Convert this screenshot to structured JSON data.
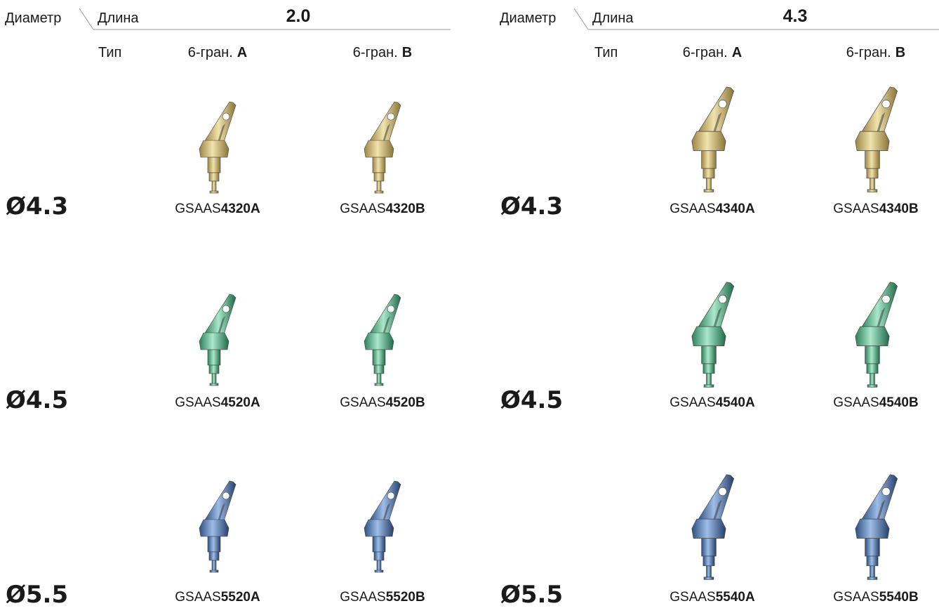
{
  "panels": [
    {
      "diameter_label": "Диаметр",
      "length_label": "Длина",
      "length": "2.0",
      "type_label": "Тип",
      "columns": [
        {
          "text": "6-гран.",
          "letter": "A"
        },
        {
          "text": "6-гран.",
          "letter": "B"
        }
      ],
      "rows": [
        {
          "diameter": "Ø4.3",
          "color": "#f39a1e",
          "codes": [
            {
              "prefix": "GSAAS",
              "number": "4320A"
            },
            {
              "prefix": "GSAAS",
              "number": "4320B"
            }
          ]
        },
        {
          "diameter": "Ø4.5",
          "color": "#3c9a3f",
          "codes": [
            {
              "prefix": "GSAAS",
              "number": "4520A"
            },
            {
              "prefix": "GSAAS",
              "number": "4520B"
            }
          ]
        },
        {
          "diameter": "Ø5.5",
          "color": "#3c9a3f",
          "codes": [
            {
              "prefix": "GSAAS",
              "number": "5520A"
            },
            {
              "prefix": "GSAAS",
              "number": "5520B"
            }
          ]
        }
      ]
    },
    {
      "diameter_label": "Диаметр",
      "length_label": "Длина",
      "length": "4.3",
      "type_label": "Тип",
      "columns": [
        {
          "text": "6-гран.",
          "letter": "A"
        },
        {
          "text": "6-гран.",
          "letter": "B"
        }
      ],
      "rows": [
        {
          "diameter": "Ø4.3",
          "color": "#f39a1e",
          "codes": [
            {
              "prefix": "GSAAS",
              "number": "4340A"
            },
            {
              "prefix": "GSAAS",
              "number": "4340B"
            }
          ]
        },
        {
          "diameter": "Ø4.5",
          "color": "#3c9a3f",
          "codes": [
            {
              "prefix": "GSAAS",
              "number": "4540A"
            },
            {
              "prefix": "GSAAS",
              "number": "4540B"
            }
          ]
        },
        {
          "diameter": "Ø5.5",
          "color": "#3c9a3f",
          "codes": [
            {
              "prefix": "GSAAS",
              "number": "5540A"
            },
            {
              "prefix": "GSAAS",
              "number": "5540B"
            }
          ]
        }
      ]
    }
  ]
}
